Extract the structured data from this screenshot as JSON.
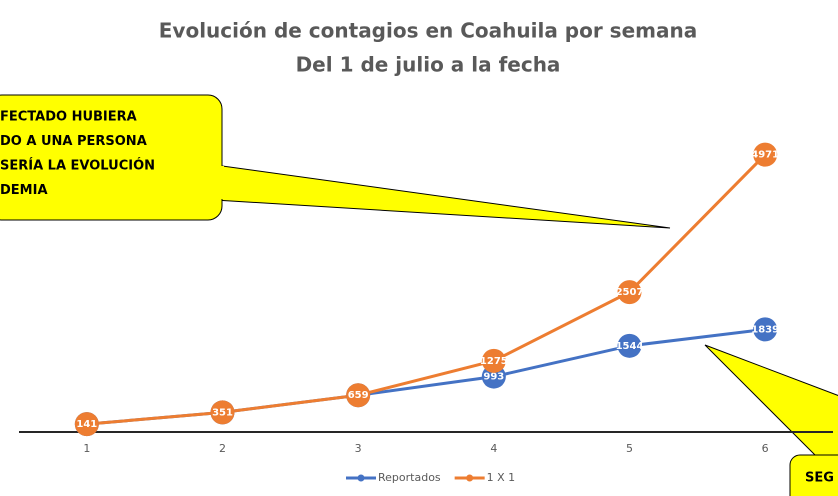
{
  "chart_data": {
    "type": "line",
    "title": "Evolución de contagios en Coahuila por semana",
    "subtitle": "Del 1 de julio a la fecha",
    "categories": [
      "1",
      "2",
      "3",
      "4",
      "5",
      "6"
    ],
    "series": [
      {
        "name": "Reportados",
        "color": "#4472c4",
        "values": [
          141,
          351,
          659,
          993,
          1544,
          1839
        ]
      },
      {
        "name": "1 X 1",
        "color": "#ed7d31",
        "values": [
          141,
          351,
          659,
          1275,
          2507,
          4971
        ]
      }
    ],
    "ylim": [
      0,
      5000
    ],
    "annotations": [
      {
        "lines": [
          "FECTADO HUBIERA",
          "DO A UNA PERSONA",
          "SERÍA LA EVOLUCIÓN",
          "DEMIA"
        ]
      },
      {
        "lines": [
          "SEG"
        ]
      }
    ],
    "legend": "bottom"
  }
}
